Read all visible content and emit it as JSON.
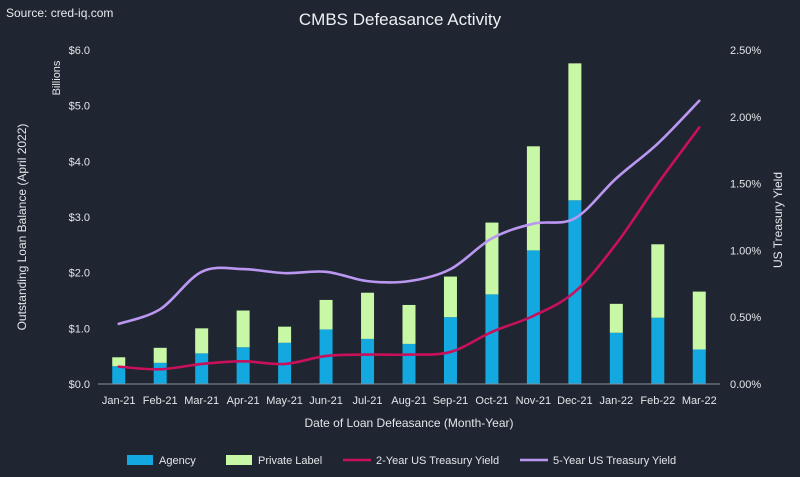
{
  "source_text": "Source: cred-iq.com",
  "chart_data": {
    "type": "bar",
    "title": "CMBS Defeasance Activity",
    "categories": [
      "Jan-21",
      "Feb-21",
      "Mar-21",
      "Apr-21",
      "May-21",
      "Jun-21",
      "Jul-21",
      "Aug-21",
      "Sep-21",
      "Oct-21",
      "Nov-21",
      "Dec-21",
      "Jan-22",
      "Feb-22",
      "Mar-22"
    ],
    "bar_series": [
      {
        "name": "Agency",
        "color": "#13a8e0",
        "values": [
          0.32,
          0.38,
          0.55,
          0.66,
          0.74,
          0.98,
          0.81,
          0.72,
          1.2,
          1.61,
          2.4,
          3.3,
          0.92,
          1.19,
          0.62
        ]
      },
      {
        "name": "Private Label",
        "color": "#c8f7a6",
        "values": [
          0.16,
          0.27,
          0.45,
          0.66,
          0.29,
          0.53,
          0.83,
          0.7,
          0.73,
          1.29,
          1.87,
          2.46,
          0.52,
          1.32,
          1.04
        ]
      }
    ],
    "line_series": [
      {
        "name": "2-Year US Treasury Yield",
        "color": "#c9105a",
        "values": [
          0.13,
          0.11,
          0.15,
          0.17,
          0.15,
          0.21,
          0.22,
          0.22,
          0.24,
          0.39,
          0.51,
          0.69,
          1.05,
          1.5,
          1.92
        ]
      },
      {
        "name": "5-Year US Treasury Yield",
        "color": "#bb97f2",
        "values": [
          0.45,
          0.56,
          0.84,
          0.86,
          0.83,
          0.84,
          0.77,
          0.77,
          0.86,
          1.09,
          1.2,
          1.24,
          1.54,
          1.8,
          2.12
        ]
      }
    ],
    "y_left": {
      "label": "Outstanding Loan Balance (April 2022)",
      "unit_label": "Billions",
      "min": 0,
      "max": 6,
      "ticks": [
        "$0.0",
        "$1.0",
        "$2.0",
        "$3.0",
        "$4.0",
        "$5.0",
        "$6.0"
      ]
    },
    "y_right": {
      "label": "US Treasury Yield",
      "min": 0,
      "max": 2.5,
      "ticks": [
        "0.00%",
        "0.50%",
        "1.00%",
        "1.50%",
        "2.00%",
        "2.50%"
      ]
    },
    "xlabel": "Date of Loan Defeasance (Month-Year)",
    "stacked": true,
    "grid": false,
    "legend_position": "bottom"
  }
}
